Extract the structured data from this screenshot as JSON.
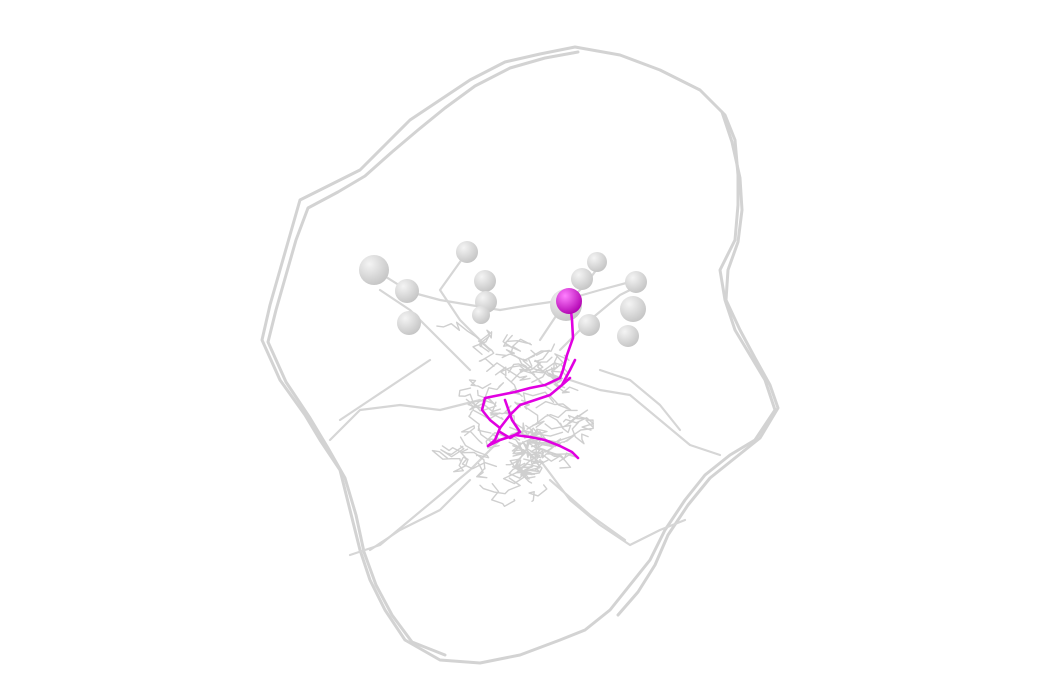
{
  "scene": {
    "background": "#ffffff",
    "context_color": "#d3d3d3",
    "highlight_color": "#e100e1",
    "soma_shading": [
      "#f2f2f2",
      "#c6c6c6"
    ],
    "highlight_shading": [
      "#ff7dff",
      "#b400b4"
    ]
  }
}
